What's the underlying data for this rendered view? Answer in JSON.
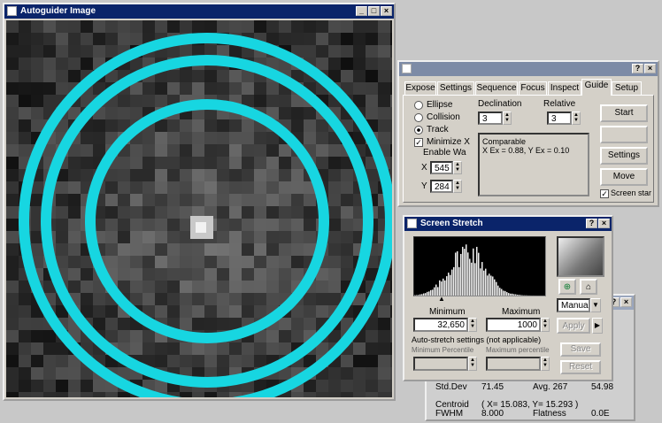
{
  "image_window": {
    "title": "Autoguider Image",
    "image_semantic": "star-field-with-cyan-circles",
    "ring_color": "#17d6e1",
    "star_color": "#e0e0e0"
  },
  "autoguide_window": {
    "title": "",
    "tabs": [
      "Expose",
      "Settings",
      "Sequence",
      "Focus",
      "Inspect",
      "Guide",
      "Setup"
    ],
    "active_tab": "Guide",
    "modes": [
      {
        "label": "Ellipse",
        "selected": false
      },
      {
        "label": "Collision",
        "selected": false
      },
      {
        "label": "Track",
        "selected": true
      }
    ],
    "options_checkbox": {
      "label": "Minimize X",
      "checked": true
    },
    "enable_label": "Enable Wa",
    "x_label": "X",
    "y_label": "Y",
    "x_value": "545",
    "y_value": "284",
    "declination_label": "Declination",
    "declination_value": "3",
    "relative_label": "Relative",
    "relative_value": "3",
    "info_lines": [
      "Comparable",
      "X Ex = 0.88, Y Ex = 0.10"
    ],
    "buttons": {
      "start": "Start",
      "stop": "",
      "settings": "Settings",
      "move": "Move"
    },
    "screen_star_label": "Screen star"
  },
  "screen_stretch_window": {
    "title": "Screen Stretch",
    "arrow_icon": "arrow-up-icon",
    "minimum_label": "Minimum",
    "maximum_label": "Maximum",
    "minimum_value": "32,650",
    "maximum_value": "1000",
    "mode_value": "Manual",
    "apply_button": "Apply",
    "autostretch_text": "Auto-stretch settings (not applicable)",
    "minimum_percentile_label": "Minimum Percentile",
    "maximum_percentile_label": "Maximum percentile",
    "save_button": "Save",
    "reset_button": "Reset"
  },
  "info_window": {
    "row1": [
      "Std.Dev",
      "71.45",
      "Avg. 267",
      "54.98"
    ],
    "centroid_label": "Centroid",
    "centroid_value": "( X= 15.083, Y= 15.293 )",
    "fwhm_label": "FWHM",
    "fwhm_value": "8.000",
    "flatness_label": "Flatness",
    "flatness_value": "0.0E"
  }
}
